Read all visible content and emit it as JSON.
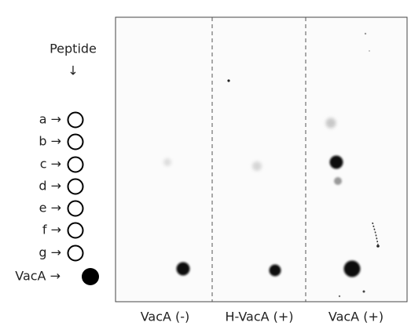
{
  "header": {
    "label": "Peptide",
    "arrow": "↓"
  },
  "rows": [
    "a →",
    "b →",
    "c →",
    "d →",
    "e →",
    "f →",
    "g →",
    "VacA →"
  ],
  "columns": [
    "VacA (-)",
    "H-VacA (+)",
    "VacA (+)"
  ]
}
